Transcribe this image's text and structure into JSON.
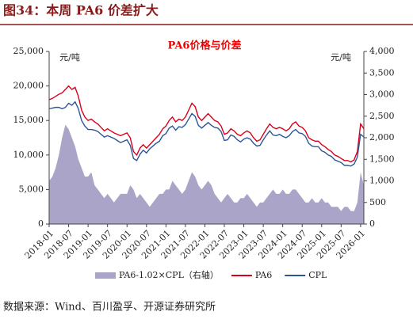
{
  "header": {
    "title": "图34：本周 PA6 价差扩大"
  },
  "source": "数据来源：Wind、百川盈孚、开源证券研究所",
  "chart_data": {
    "type": "line",
    "title": "PA6价格与价差",
    "y_label": "元/吨",
    "y2_label": "元/吨",
    "x": [
      "2018-01",
      "2018-02",
      "2018-03",
      "2018-04",
      "2018-05",
      "2018-06",
      "2018-07",
      "2018-08",
      "2018-09",
      "2018-10",
      "2018-11",
      "2018-12",
      "2019-01",
      "2019-02",
      "2019-03",
      "2019-04",
      "2019-05",
      "2019-06",
      "2019-07",
      "2019-08",
      "2019-09",
      "2019-10",
      "2019-11",
      "2019-12",
      "2020-01",
      "2020-02",
      "2020-03",
      "2020-04",
      "2020-05",
      "2020-06",
      "2020-07",
      "2020-08",
      "2020-09",
      "2020-10",
      "2020-11",
      "2020-12",
      "2021-01",
      "2021-02",
      "2021-03",
      "2021-04",
      "2021-05",
      "2021-06",
      "2021-07",
      "2021-08",
      "2021-09",
      "2021-10",
      "2021-11",
      "2021-12",
      "2022-01",
      "2022-02",
      "2022-03",
      "2022-04",
      "2022-05",
      "2022-06",
      "2022-07",
      "2022-08",
      "2022-09",
      "2022-10",
      "2022-11",
      "2022-12",
      "2023-01",
      "2023-02",
      "2023-03",
      "2023-04",
      "2023-05",
      "2023-06",
      "2023-07",
      "2023-08",
      "2023-09",
      "2023-10",
      "2023-11",
      "2023-12",
      "2024-01",
      "2024-02",
      "2024-03",
      "2024-04",
      "2024-05",
      "2024-06",
      "2024-07",
      "2024-08",
      "2024-09",
      "2024-10",
      "2024-11",
      "2024-12",
      "2025-01",
      "2025-02",
      "2025-03",
      "2025-04",
      "2025-05",
      "2025-06",
      "2025-07",
      "2025-08",
      "2025-09",
      "2025-10",
      "2025-11",
      "2025-12",
      "2026-01",
      "2026-02"
    ],
    "xticks": [
      "2018-01",
      "2018-07",
      "2019-01",
      "2019-07",
      "2020-01",
      "2020-07",
      "2021-01",
      "2021-07",
      "2022-01",
      "2022-07",
      "2023-01",
      "2023-07",
      "2024-01",
      "2024-07",
      "2025-01",
      "2025-07",
      "2026-01"
    ],
    "ylim": [
      0,
      25000
    ],
    "yticks": [
      0,
      {
        "value": 5000,
        "label": "5,000"
      },
      {
        "value": 10000,
        "label": "10,000"
      },
      {
        "value": 15000,
        "label": "15,000"
      },
      {
        "value": 20000,
        "label": "20,000"
      },
      {
        "value": 25000,
        "label": "25,000"
      }
    ],
    "y2lim": [
      0,
      4000
    ],
    "y2ticks": [
      0,
      500,
      {
        "value": 1000,
        "label": "1,000"
      },
      {
        "value": 1500,
        "label": "1,500"
      },
      {
        "value": 2000,
        "label": "2,000"
      },
      {
        "value": 2500,
        "label": "2,500"
      },
      {
        "value": 3000,
        "label": "3,000"
      },
      {
        "value": 3500,
        "label": "3,500"
      },
      {
        "value": 4000,
        "label": "4,000"
      }
    ],
    "series": [
      {
        "name": "PA6-1.02×CPL（右轴）",
        "color": "#aaa4c8",
        "kind": "area",
        "axis": "y2",
        "values": [
          1000,
          1100,
          1300,
          1600,
          2000,
          2300,
          2200,
          2000,
          1800,
          1500,
          1300,
          1100,
          1100,
          1200,
          900,
          800,
          700,
          600,
          700,
          600,
          500,
          600,
          700,
          700,
          700,
          900,
          800,
          600,
          700,
          600,
          500,
          400,
          500,
          600,
          700,
          700,
          800,
          800,
          1000,
          900,
          800,
          700,
          800,
          1000,
          1200,
          1100,
          900,
          800,
          900,
          1000,
          900,
          700,
          600,
          500,
          600,
          700,
          600,
          500,
          500,
          600,
          600,
          700,
          600,
          500,
          400,
          500,
          500,
          600,
          700,
          800,
          700,
          700,
          800,
          700,
          700,
          800,
          800,
          700,
          600,
          500,
          500,
          600,
          500,
          500,
          600,
          500,
          500,
          400,
          400,
          400,
          300,
          400,
          400,
          300,
          300,
          500,
          1200,
          900
        ]
      },
      {
        "name": "PA6",
        "color": "#d9001b",
        "kind": "line",
        "values": [
          18000,
          18200,
          18500,
          18800,
          19000,
          19500,
          20000,
          19500,
          19800,
          18500,
          16500,
          15500,
          15000,
          15200,
          14800,
          14500,
          14000,
          13500,
          13800,
          13500,
          13200,
          13000,
          12800,
          13000,
          13200,
          12500,
          10500,
          10000,
          11000,
          11500,
          11000,
          11500,
          12000,
          12500,
          13000,
          13800,
          14200,
          15000,
          15500,
          14800,
          15200,
          15000,
          15500,
          16500,
          17500,
          17000,
          15500,
          15000,
          15500,
          16000,
          15500,
          15000,
          14800,
          14200,
          13000,
          13200,
          13800,
          13500,
          13000,
          12800,
          13200,
          13500,
          13200,
          12500,
          12000,
          12200,
          13000,
          13800,
          14500,
          14000,
          13800,
          14000,
          13800,
          13500,
          13800,
          14500,
          14800,
          14200,
          14000,
          13500,
          12500,
          12200,
          12000,
          12000,
          11500,
          11200,
          10800,
          10500,
          10000,
          9800,
          9500,
          9200,
          9200,
          9000,
          9300,
          10500,
          14500,
          13800
        ]
      },
      {
        "name": "CPL",
        "color": "#2f5597",
        "kind": "line",
        "values": [
          16700,
          16800,
          16900,
          16900,
          16700,
          16900,
          17500,
          17200,
          17700,
          16700,
          15000,
          14200,
          13700,
          13700,
          13600,
          13400,
          13000,
          12600,
          12800,
          12600,
          12400,
          12100,
          11800,
          12000,
          12200,
          11400,
          9500,
          9200,
          10100,
          10700,
          10300,
          10900,
          11300,
          11700,
          12000,
          12800,
          13100,
          13900,
          14200,
          13600,
          14100,
          14000,
          14400,
          15200,
          16000,
          15600,
          14300,
          13900,
          14300,
          14700,
          14300,
          14000,
          13900,
          13400,
          12100,
          12200,
          12900,
          12700,
          12200,
          11900,
          12300,
          12500,
          12300,
          11700,
          11300,
          11400,
          12200,
          12900,
          13500,
          12900,
          12800,
          13000,
          12700,
          12500,
          12800,
          13400,
          13700,
          13200,
          13100,
          12700,
          11700,
          11300,
          11200,
          11200,
          10600,
          10400,
          10000,
          9800,
          9300,
          9100,
          8900,
          8500,
          8500,
          8400,
          8700,
          9700,
          13000,
          12600
        ]
      }
    ]
  }
}
